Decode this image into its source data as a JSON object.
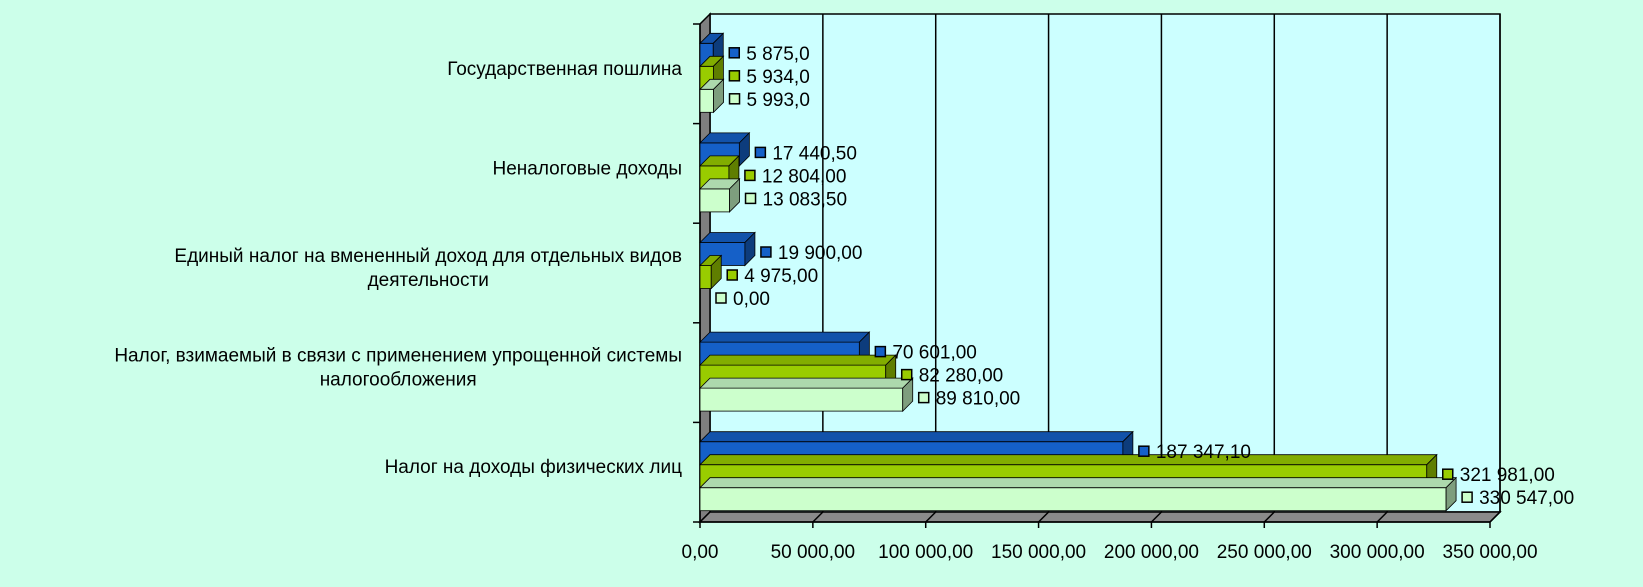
{
  "chart_data": {
    "type": "bar",
    "orientation": "horizontal",
    "style": "3d",
    "categories": [
      [
        "Государственная пошлина"
      ],
      [
        "Неналоговые доходы"
      ],
      [
        "Единый налог на вмененный доход для отдельных видов",
        "деятельности"
      ],
      [
        "Налог, взимаемый в связи с применением  упрощенной системы",
        "налогообложения"
      ],
      [
        "Налог на доходы физических  лиц"
      ]
    ],
    "series": [
      {
        "color": "#1560c8",
        "values": [
          5875.0,
          17440.5,
          19900.0,
          70601.0,
          187347.1
        ],
        "value_labels": [
          "5 875,0",
          "17 440,50",
          "19 900,00",
          "70 601,00",
          "187 347,10"
        ]
      },
      {
        "color": "#99cc00",
        "values": [
          5934.0,
          12804.0,
          4975.0,
          82280.0,
          321981.0
        ],
        "value_labels": [
          "5 934,0",
          "12 804,00",
          "4 975,00",
          "82 280,00",
          "321 981,00"
        ]
      },
      {
        "color": "#ccffcc",
        "values": [
          5993.0,
          13083.5,
          0.0,
          89810.0,
          330547.0
        ],
        "value_labels": [
          "5 993,0",
          "13 083,50",
          "0,00",
          "89 810,00",
          "330 547,00"
        ]
      }
    ],
    "xlim": [
      0,
      350000
    ],
    "x_ticks": [
      0,
      50000,
      100000,
      150000,
      200000,
      250000,
      300000,
      350000
    ],
    "x_tick_labels": [
      "0,00",
      "50 000,00",
      "100 000,00",
      "150 000,00",
      "200 000,00",
      "250 000,00",
      "300 000,00",
      "350 000,00"
    ],
    "grid": true,
    "plot_background": "#ccffff",
    "page_background": "#ccffea"
  }
}
